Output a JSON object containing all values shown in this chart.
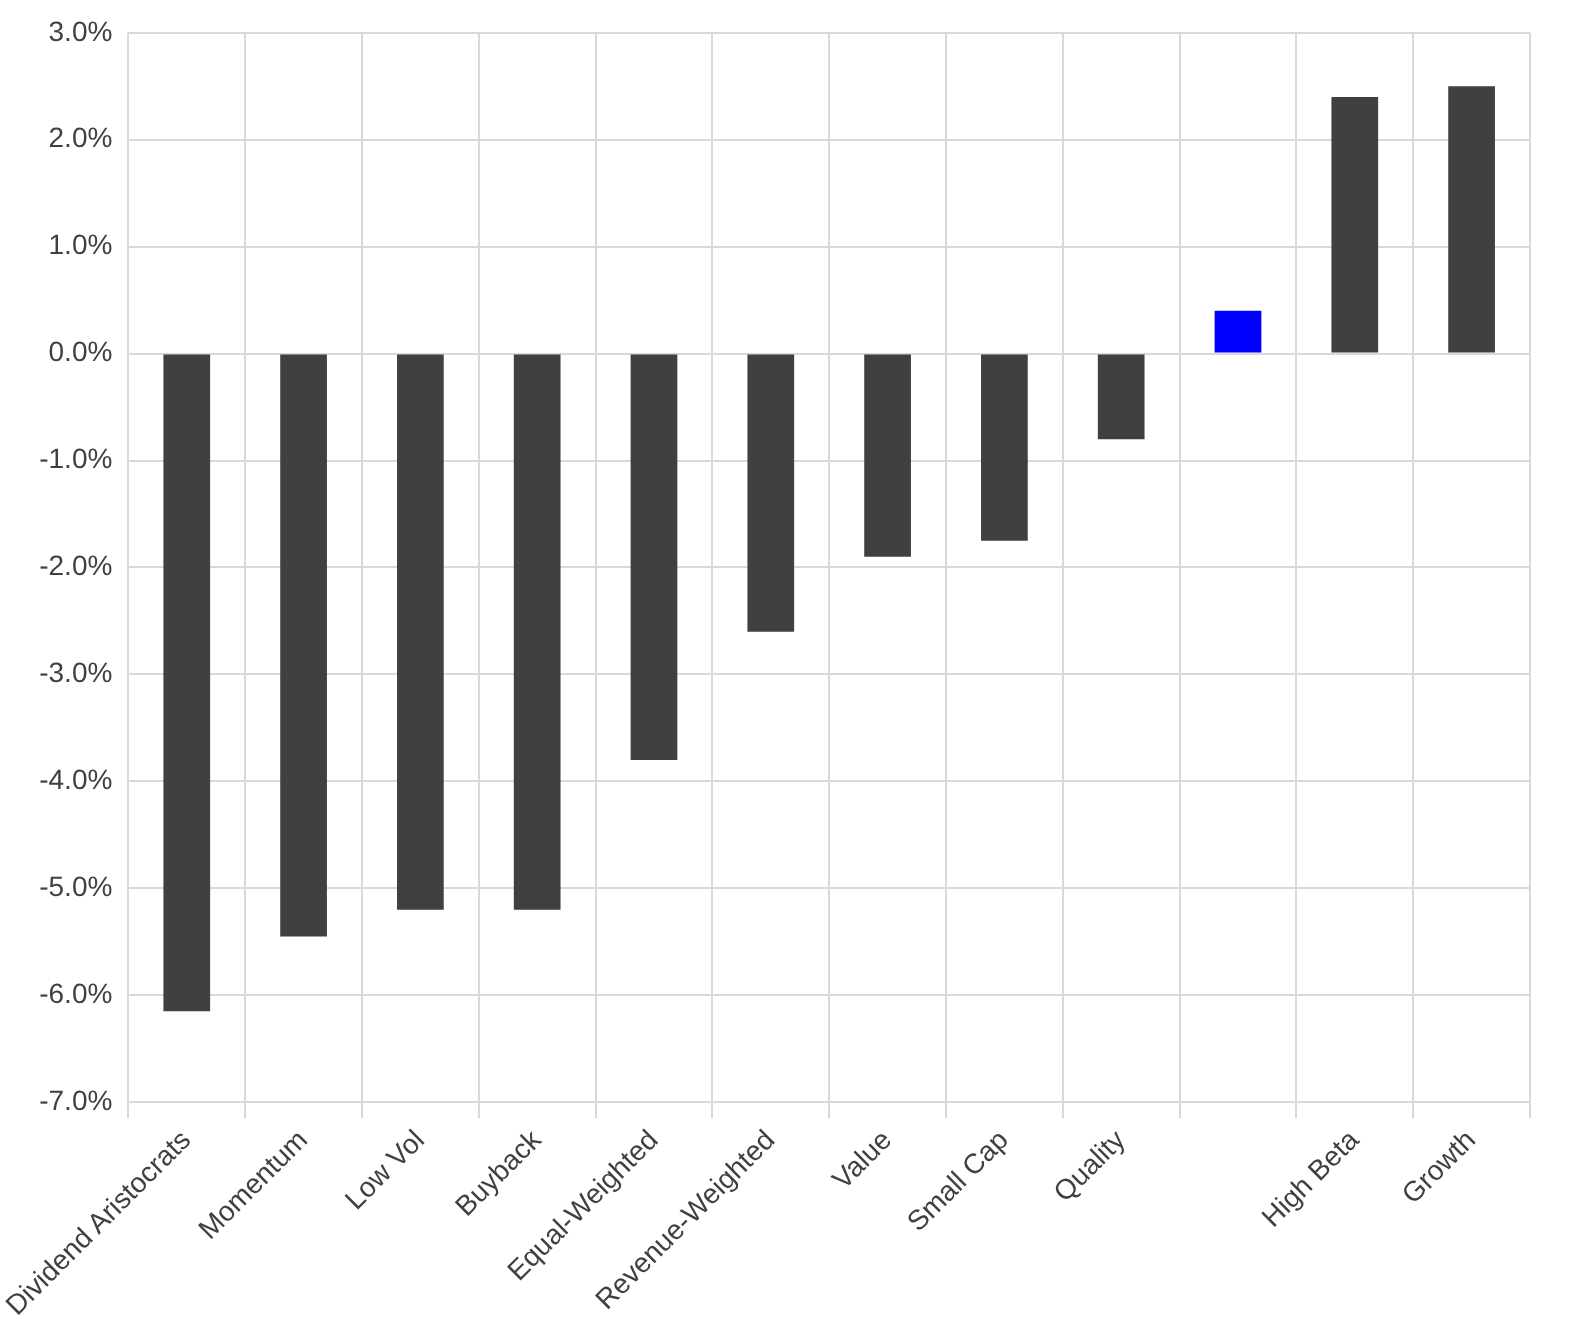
{
  "chart_data": {
    "type": "bar",
    "categories": [
      "Dividend Aristocrats",
      "Momentum",
      "Low Vol",
      "Buyback",
      "Equal-Weighted",
      "Revenue-Weighted",
      "Value",
      "Small Cap",
      "Quality",
      null,
      "High Beta",
      "Growth"
    ],
    "values": [
      -6.15,
      -5.45,
      -5.2,
      -5.2,
      -3.8,
      -2.6,
      -1.9,
      -1.75,
      -0.8,
      0.4,
      2.4,
      2.5
    ],
    "colors": [
      "#404040",
      "#404040",
      "#404040",
      "#404040",
      "#404040",
      "#404040",
      "#404040",
      "#404040",
      "#404040",
      "#0000ff",
      "#404040",
      "#404040"
    ],
    "ylim": [
      -7,
      3
    ],
    "yticks": [
      {
        "value": -7,
        "label": "-7.0%"
      },
      {
        "value": -6,
        "label": "-6.0%"
      },
      {
        "value": -5,
        "label": "-5.0%"
      },
      {
        "value": -4,
        "label": "-4.0%"
      },
      {
        "value": -3,
        "label": "-3.0%"
      },
      {
        "value": -2,
        "label": "-2.0%"
      },
      {
        "value": -1,
        "label": "-1.0%"
      },
      {
        "value": 0,
        "label": "0.0%"
      },
      {
        "value": 1,
        "label": "1.0%"
      },
      {
        "value": 2,
        "label": "2.0%"
      },
      {
        "value": 3,
        "label": "3.0%"
      }
    ],
    "grid": true
  }
}
